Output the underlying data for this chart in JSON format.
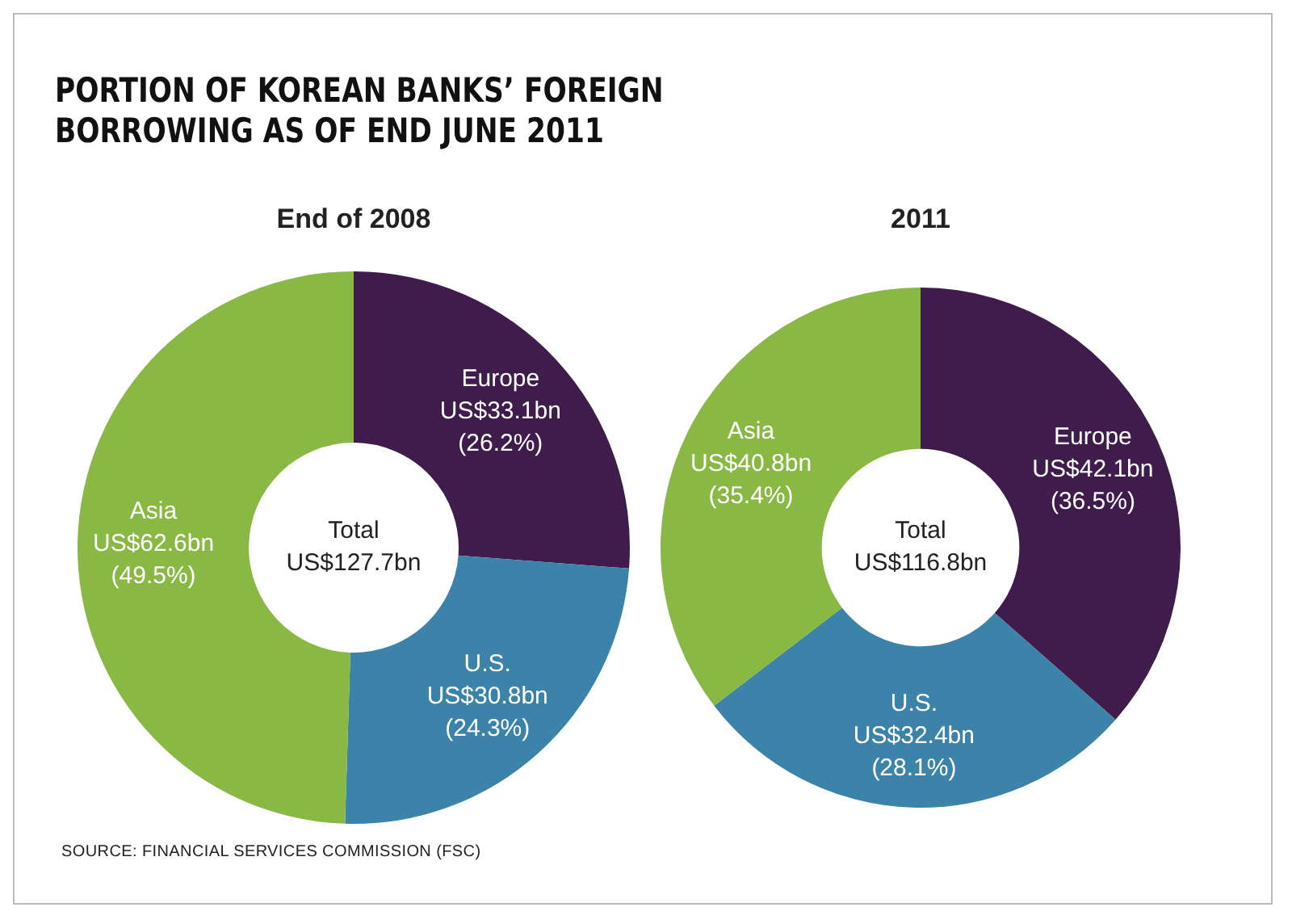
{
  "chart_data": [
    {
      "type": "other",
      "title": "PORTION OF KOREAN BANKS’ FOREIGN BORROWING AS OF END JUNE 2011",
      "annotations": [
        "SOURCE: FINANCIAL SERVICES COMMISSION (FSC)"
      ]
    },
    {
      "type": "donut",
      "title": "End of 2008",
      "categories": [
        "Europe",
        "U.S.",
        "Asia"
      ],
      "values": [
        26.2,
        24.3,
        49.5
      ],
      "colors": [
        "#3f1c4c",
        "#3b83a8",
        "#8ab844"
      ],
      "value_labels": [
        "US$33.1bn (26.2%)",
        "US$30.8bn (24.3%)",
        "US$62.6bn (49.5%)"
      ],
      "annotations": [
        "Total US$127.7bn"
      ],
      "legend": false
    },
    {
      "type": "donut",
      "title": "2011",
      "categories": [
        "Europe",
        "U.S.",
        "Asia"
      ],
      "values": [
        36.5,
        28.1,
        35.4
      ],
      "colors": [
        "#3f1c4c",
        "#3b83a8",
        "#8ab844"
      ],
      "value_labels": [
        "US$42.1bn (36.5%)",
        "US$32.4bn (28.1%)",
        "US$40.8bn (35.4%)"
      ],
      "annotations": [
        "Total US$116.8bn"
      ],
      "legend": false
    }
  ]
}
